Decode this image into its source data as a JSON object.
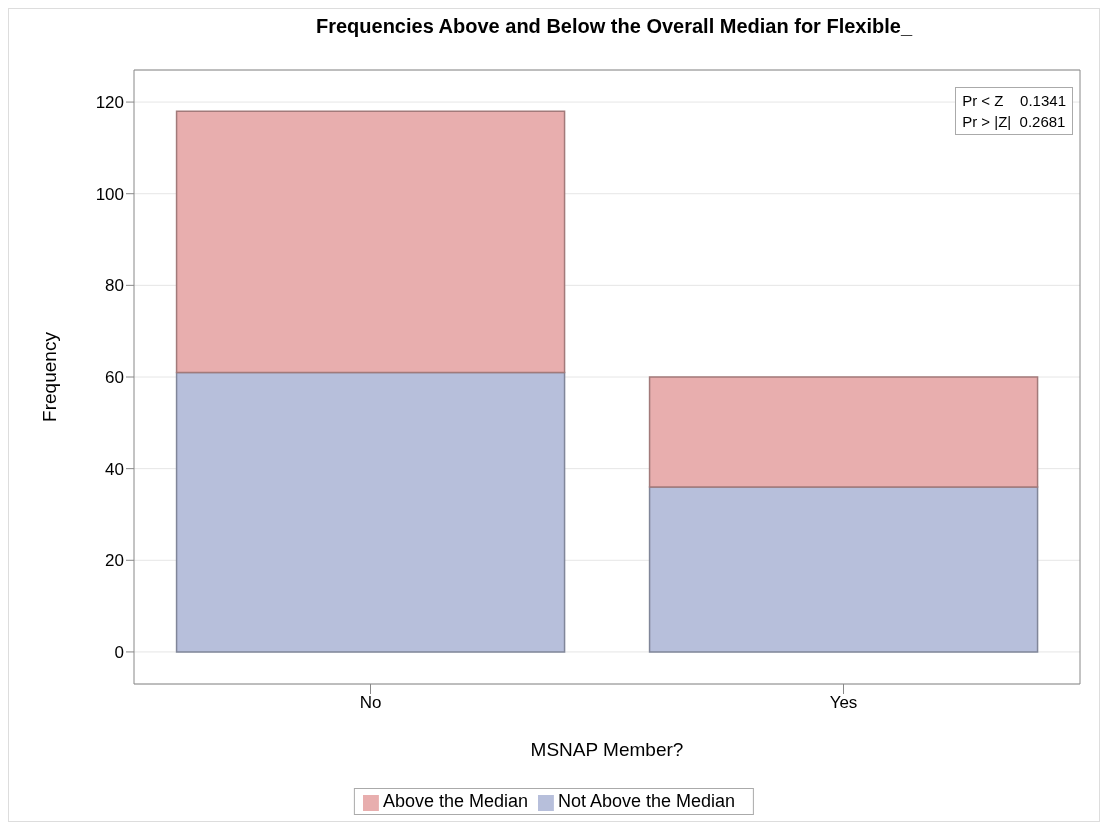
{
  "chart_data": {
    "type": "bar",
    "title": "Frequencies Above and Below the Overall Median for Flexible_",
    "xlabel": "MSNAP Member?",
    "ylabel": "Frequency",
    "categories": [
      "No",
      "Yes"
    ],
    "stacked": true,
    "series": [
      {
        "name": "Not Above the Median",
        "color": "#b7bfdb",
        "values": [
          61,
          36
        ]
      },
      {
        "name": "Above the Median",
        "color": "#e8aeae",
        "values": [
          57,
          24
        ]
      }
    ],
    "ylim": [
      -7,
      127
    ],
    "yticks": [
      0,
      20,
      40,
      60,
      80,
      100,
      120
    ],
    "grid": "y",
    "legend": "bottom",
    "annotations": [
      "Pr < Z    0.1341",
      "Pr > |Z|  0.2681"
    ]
  }
}
